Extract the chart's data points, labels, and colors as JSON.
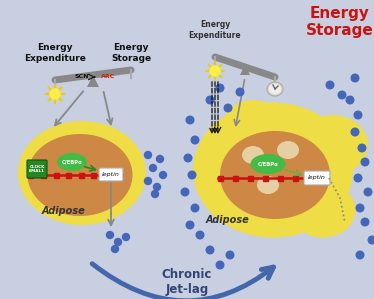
{
  "bg_color": "#c5cdd e",
  "title": "Chronic\nJet-lag",
  "left": {
    "ee_text": "Energy\nExpenditure",
    "es_text": "Energy\nStorage",
    "scn": "SCN",
    "arc": "ARC",
    "clock": "CLOCK\nBMAL1",
    "cebp": "C/EBPα",
    "leptin": "leptin",
    "adipose": "Adipose"
  },
  "right": {
    "ee_text": "Energy\nExpenditure",
    "es_text": "Energy\nStorage",
    "cebp": "C/EBPα",
    "leptin": "leptin",
    "adipose": "Adipose"
  },
  "bg": "#c8cfe0"
}
